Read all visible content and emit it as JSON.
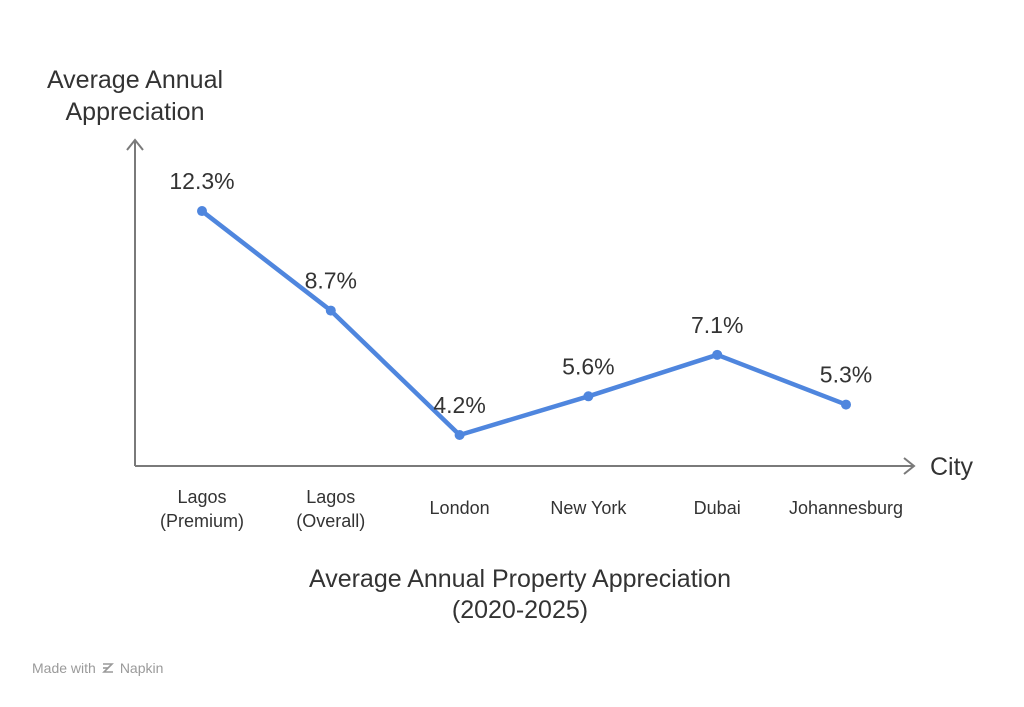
{
  "credit": {
    "prefix": "Made with",
    "brand": "Napkin"
  },
  "chart_data": {
    "type": "line",
    "title": "Average Annual Property Appreciation (2020-2025)",
    "title_lines": [
      "Average Annual Property Appreciation",
      "(2020-2025)"
    ],
    "ylabel": "Average Annual Appreciation",
    "ylabel_lines": [
      "Average Annual",
      "Appreciation"
    ],
    "xlabel": "City",
    "categories": [
      "Lagos (Premium)",
      "Lagos (Overall)",
      "London",
      "New York",
      "Dubai",
      "Johannesburg"
    ],
    "category_lines": [
      [
        "Lagos",
        "(Premium)"
      ],
      [
        "Lagos",
        "(Overall)"
      ],
      [
        "London"
      ],
      [
        "New York"
      ],
      [
        "Dubai"
      ],
      [
        "Johannesburg"
      ]
    ],
    "series": [
      {
        "values": [
          12.3,
          8.7,
          4.2,
          5.6,
          7.1,
          5.3
        ],
        "labels": [
          "12.3%",
          "8.7%",
          "4.2%",
          "5.6%",
          "7.1%",
          "5.3%"
        ]
      }
    ],
    "grid": false,
    "legend": "none",
    "colors": {
      "line": "#4f86de",
      "axis": "#7a7a7a",
      "text": "#333333"
    }
  }
}
